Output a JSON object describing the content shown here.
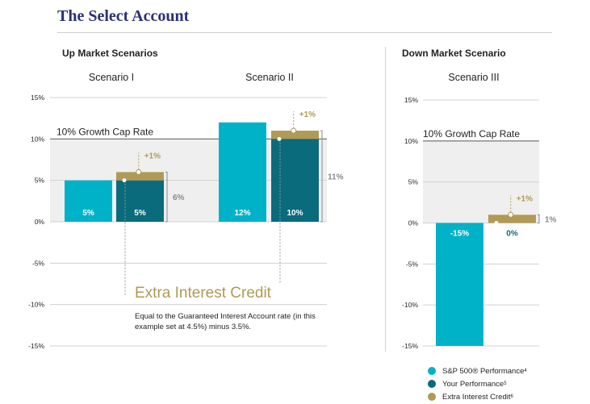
{
  "title": "The Select Account",
  "sections": {
    "up_market": "Up Market Scenarios",
    "down_market": "Down Market Scenario"
  },
  "scenarios": [
    "Scenario I",
    "Scenario II",
    "Scenario III"
  ],
  "annotation": {
    "title": "Extra Interest Credit",
    "description": "Equal to the Guaranteed Interest Account rate (in this example set at 4.5%) minus 3.5%."
  },
  "legend": [
    {
      "label": "S&P 500® Performance",
      "sup": "4",
      "color": "#00b2c8"
    },
    {
      "label": "Your Performance",
      "sup": "5",
      "color": "#0a6b7d"
    },
    {
      "label": "Extra Interest Credit",
      "sup": "6",
      "color": "#b09a55"
    }
  ],
  "chart_data": [
    {
      "type": "bar",
      "title": "Up Market Scenarios",
      "ylim": [
        -15,
        15
      ],
      "yticks": [
        "15%",
        "10%",
        "5%",
        "0%",
        "-5%",
        "-10%",
        "-15%"
      ],
      "cap_label": "10% Growth Cap Rate",
      "cap_value": 10,
      "categories": [
        "Scenario I",
        "Scenario II"
      ],
      "series": [
        {
          "name": "S&P 500® Performance",
          "values": [
            5,
            12
          ],
          "labels": [
            "5%",
            "12%"
          ]
        },
        {
          "name": "Your Performance",
          "values": [
            5,
            10
          ],
          "labels": [
            "5%",
            "10%"
          ]
        },
        {
          "name": "Extra Interest Credit",
          "values": [
            1,
            1
          ],
          "labels": [
            "+1%",
            "+1%"
          ]
        }
      ],
      "totals": [
        "6%",
        "11%"
      ]
    },
    {
      "type": "bar",
      "title": "Down Market Scenario",
      "ylim": [
        -15,
        15
      ],
      "yticks": [
        "15%",
        "10%",
        "5%",
        "0%",
        "-5%",
        "-10%",
        "-15%"
      ],
      "cap_label": "10% Growth Cap Rate",
      "cap_value": 10,
      "categories": [
        "Scenario III"
      ],
      "series": [
        {
          "name": "S&P 500® Performance",
          "values": [
            -15
          ],
          "labels": [
            "-15%"
          ]
        },
        {
          "name": "Your Performance",
          "values": [
            0
          ],
          "labels": [
            "0%"
          ]
        },
        {
          "name": "Extra Interest Credit",
          "values": [
            1
          ],
          "labels": [
            "+1%"
          ]
        }
      ],
      "totals": [
        "1%"
      ]
    }
  ]
}
